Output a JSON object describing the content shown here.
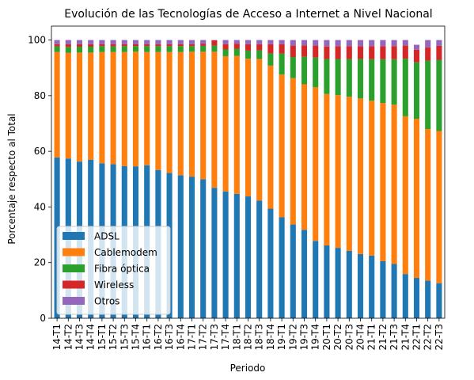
{
  "chart_data": {
    "type": "bar",
    "stacked": true,
    "title": "Evolución de las Tecnologías de Acceso a Internet a Nivel Nacional",
    "xlabel": "Periodo",
    "ylabel": "Porcentaje respecto al Total",
    "ylim": [
      0,
      105
    ],
    "yticks": [
      0,
      20,
      40,
      60,
      80,
      100
    ],
    "grid": false,
    "legend_position": "lower-left",
    "categories": [
      "14-T1",
      "14-T2",
      "14-T3",
      "14-T4",
      "15-T1",
      "15-T2",
      "15-T3",
      "15-T4",
      "16-T1",
      "16-T2",
      "16-T3",
      "16-T4",
      "17-T1",
      "17-T2",
      "17-T3",
      "17-T4",
      "18-T1",
      "18-T2",
      "18-T3",
      "18-T4",
      "19-T1",
      "19-T2",
      "19-T3",
      "19-T4",
      "20-T1",
      "20-T2",
      "20-T3",
      "20-T4",
      "21-T1",
      "21-T2",
      "21-T3",
      "21-T4",
      "22-T1",
      "22-T2",
      "22-T3"
    ],
    "series": [
      {
        "name": "ADSL",
        "color": "#1f77b4",
        "values": [
          57.8,
          57.4,
          56.3,
          57.0,
          55.7,
          55.4,
          54.7,
          54.6,
          55.0,
          53.3,
          52.2,
          51.4,
          50.9,
          50.0,
          46.9,
          45.6,
          44.7,
          43.8,
          42.3,
          39.4,
          36.3,
          33.7,
          31.8,
          27.8,
          26.2,
          25.3,
          24.2,
          23.1,
          22.5,
          20.5,
          19.5,
          15.9,
          14.5,
          13.5,
          12.6
        ]
      },
      {
        "name": "Cablemodem",
        "color": "#ff7f0e",
        "values": [
          37.9,
          38.0,
          39.2,
          38.5,
          40.0,
          40.3,
          41.0,
          41.2,
          40.7,
          42.4,
          43.5,
          44.3,
          44.9,
          45.8,
          48.9,
          48.6,
          49.6,
          49.5,
          50.9,
          51.4,
          51.3,
          52.6,
          52.3,
          55.2,
          54.4,
          54.9,
          55.4,
          55.9,
          55.7,
          56.9,
          57.3,
          56.7,
          57.2,
          54.5,
          54.7
        ]
      },
      {
        "name": "Fibra óptica",
        "color": "#2ca02c",
        "values": [
          2.0,
          2.1,
          2.1,
          2.1,
          2.1,
          2.0,
          2.1,
          2.0,
          2.1,
          2.1,
          2.1,
          2.1,
          2.0,
          2.1,
          2.2,
          2.4,
          2.6,
          2.9,
          3.1,
          4.4,
          7.6,
          7.6,
          9.9,
          10.7,
          12.6,
          13.0,
          13.6,
          14.2,
          14.9,
          15.7,
          16.3,
          20.7,
          20.3,
          24.6,
          25.6
        ]
      },
      {
        "name": "Wireless",
        "color": "#d62728",
        "values": [
          0.8,
          1.0,
          0.9,
          0.9,
          0.7,
          0.8,
          0.7,
          0.7,
          0.7,
          0.7,
          0.7,
          0.7,
          0.7,
          0.7,
          1.9,
          1.9,
          1.8,
          2.3,
          2.2,
          3.3,
          3.3,
          4.1,
          4.1,
          4.3,
          4.5,
          4.6,
          4.6,
          4.6,
          4.7,
          4.7,
          4.7,
          4.7,
          4.5,
          4.8,
          5.0
        ]
      },
      {
        "name": "Otros",
        "color": "#9467bd",
        "values": [
          1.5,
          1.5,
          1.5,
          1.5,
          1.5,
          1.5,
          1.5,
          1.5,
          1.5,
          1.5,
          1.5,
          1.5,
          1.5,
          1.4,
          0.1,
          1.5,
          1.3,
          1.5,
          1.5,
          1.5,
          1.5,
          2.0,
          1.9,
          2.0,
          2.3,
          2.2,
          2.2,
          2.2,
          2.2,
          2.2,
          2.2,
          2.0,
          1.8,
          2.6,
          2.1
        ]
      }
    ]
  }
}
